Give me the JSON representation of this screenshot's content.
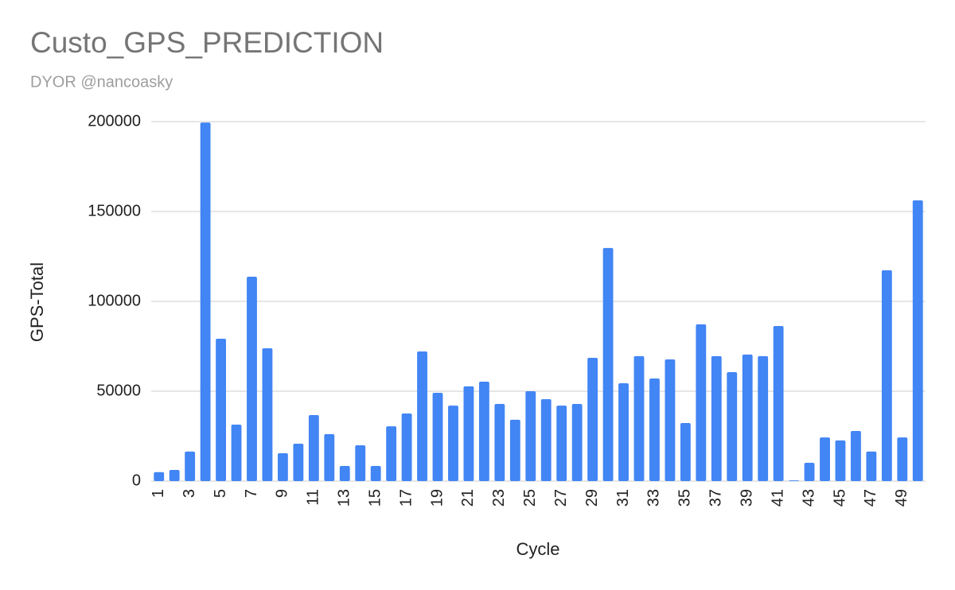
{
  "chart_data": {
    "type": "bar",
    "title": "Custo_GPS_PREDICTION",
    "subtitle": "DYOR @nancoasky",
    "x_label": "Cycle",
    "y_label": "GPS-Total",
    "categories": [
      "1",
      null,
      "3",
      null,
      "5",
      null,
      "7",
      null,
      "9",
      null,
      "11",
      null,
      "13",
      null,
      "15",
      null,
      "17",
      null,
      "19",
      null,
      "21",
      null,
      "23",
      null,
      "25",
      null,
      "27",
      null,
      "29",
      null,
      "31",
      null,
      "33",
      null,
      "35",
      null,
      "37",
      null,
      "39",
      null,
      "41",
      null,
      "43",
      null,
      "45",
      null,
      "47",
      null,
      "49",
      null
    ],
    "values": [
      5000,
      6200,
      16400,
      199500,
      79200,
      31400,
      113700,
      73900,
      15500,
      20800,
      36700,
      26100,
      8400,
      19900,
      8400,
      30500,
      37600,
      72100,
      49100,
      42000,
      52700,
      55300,
      42900,
      34100,
      50000,
      45600,
      42000,
      42900,
      68600,
      129700,
      54400,
      69500,
      57100,
      67700,
      32300,
      87200,
      69500,
      60600,
      70400,
      69500,
      86300,
      400,
      10200,
      24300,
      22600,
      27900,
      16400,
      117300,
      24300,
      156200
    ],
    "color": "#4285f4",
    "ylim": [
      0,
      200000
    ],
    "yticks": [
      0,
      50000,
      100000,
      150000,
      200000
    ],
    "grid": true
  }
}
